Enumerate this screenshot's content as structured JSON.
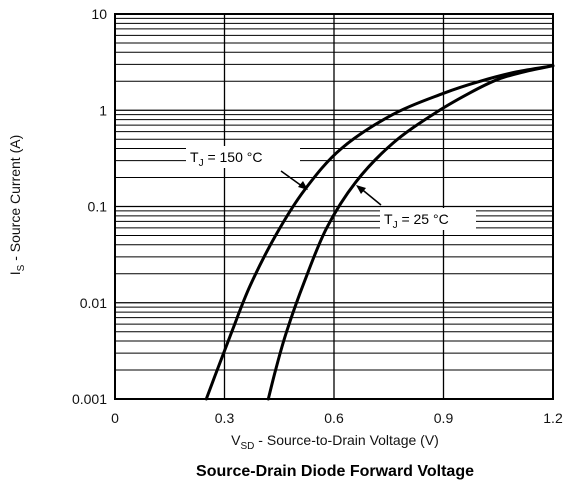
{
  "chart_data": {
    "type": "line",
    "title": "Source-Drain Diode Forward Voltage",
    "xlabel": {
      "main": "V",
      "sub": "SD",
      "rest": " - Source-to-Drain Voltage (V)"
    },
    "ylabel": {
      "main": "I",
      "sub": "S",
      "rest": " - Source Current (A)"
    },
    "xlim": [
      0,
      1.2
    ],
    "ylim": [
      0.001,
      10
    ],
    "yscale": "log",
    "grid": true,
    "x_ticks": [
      "0",
      "0.3",
      "0.6",
      "0.9",
      "1.2"
    ],
    "x_tick_values": [
      0,
      0.3,
      0.6,
      0.9,
      1.2
    ],
    "y_ticks": [
      "0.001",
      "0.01",
      "0.1",
      "1",
      "10"
    ],
    "y_tick_values": [
      0.001,
      0.01,
      0.1,
      1,
      10
    ],
    "series": [
      {
        "name": "T_J = 150 °C",
        "label_main": "T",
        "label_sub": "J",
        "label_rest": " = 150 °C",
        "x": [
          0.25,
          0.28,
          0.32,
          0.37,
          0.44,
          0.52,
          0.62,
          0.76,
          0.9,
          1.0,
          1.1,
          1.2
        ],
        "y": [
          0.001,
          0.002,
          0.005,
          0.015,
          0.05,
          0.15,
          0.4,
          0.9,
          1.5,
          2.0,
          2.5,
          2.9
        ]
      },
      {
        "name": "T_J = 25 °C",
        "label_main": "T",
        "label_sub": "J",
        "label_rest": " = 25 °C",
        "x": [
          0.42,
          0.44,
          0.47,
          0.52,
          0.58,
          0.66,
          0.76,
          0.87,
          0.97,
          1.05,
          1.12,
          1.2
        ],
        "y": [
          0.001,
          0.002,
          0.005,
          0.017,
          0.06,
          0.18,
          0.45,
          0.9,
          1.5,
          2.1,
          2.5,
          2.9
        ]
      }
    ],
    "colors": {
      "line": "#000000",
      "grid": "#000000",
      "background": "#ffffff"
    }
  }
}
